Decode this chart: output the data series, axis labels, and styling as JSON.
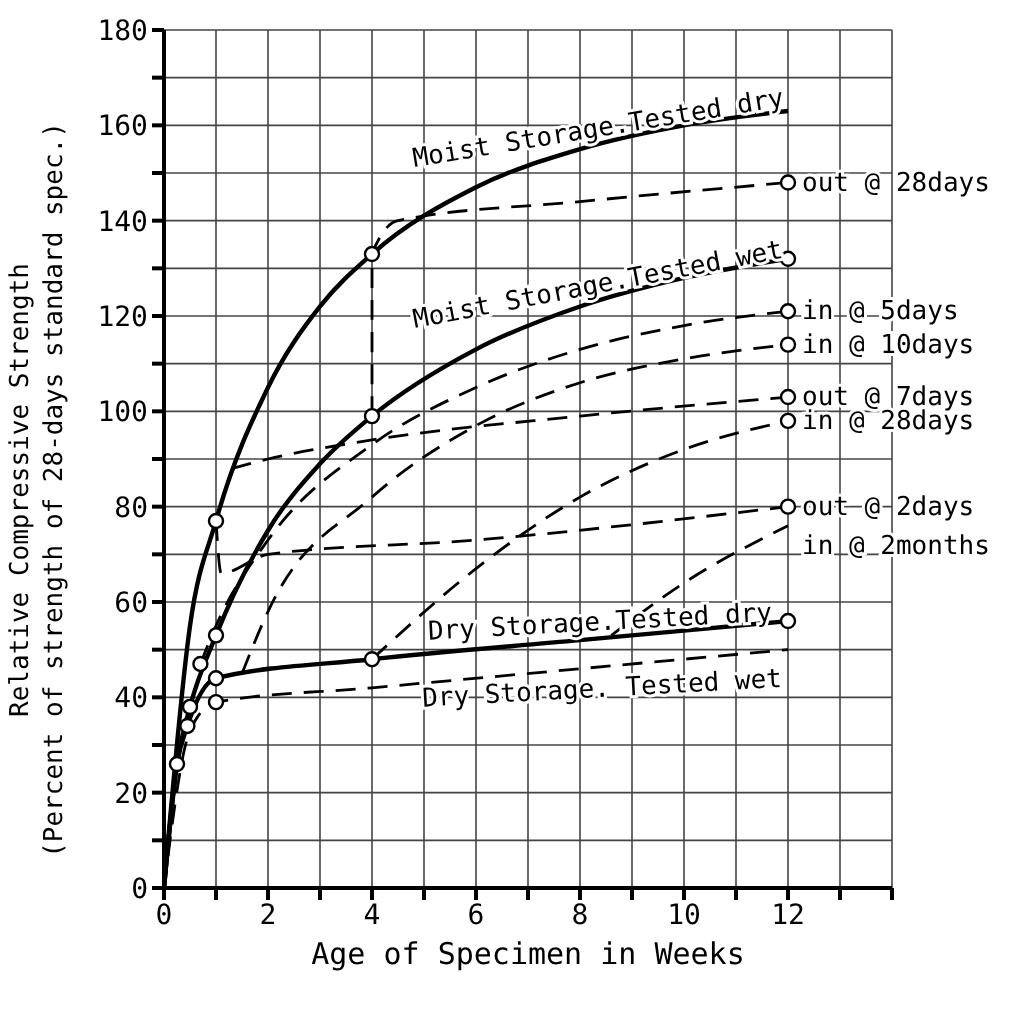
{
  "chart_data": {
    "type": "line",
    "xlabel": "Age of Specimen in Weeks",
    "ylabel": "Relative Compressive Strength\n(Percent of strength of 28-days standard spec.)",
    "xlim": [
      0,
      14
    ],
    "xticks": [
      0,
      {
        "value": 1,
        "label": null
      },
      2,
      {
        "value": 3,
        "label": null
      },
      4,
      {
        "value": 5,
        "label": null
      },
      6,
      {
        "value": 7,
        "label": null
      },
      8,
      {
        "value": 9,
        "label": null
      },
      10,
      {
        "value": 11,
        "label": null
      },
      12,
      {
        "value": 13,
        "label": null
      },
      {
        "value": 14,
        "label": null
      }
    ],
    "ylim": [
      0,
      180
    ],
    "yticks": [
      0,
      {
        "value": 10,
        "label": null
      },
      20,
      {
        "value": 30,
        "label": null
      },
      40,
      {
        "value": 50,
        "label": null
      },
      60,
      {
        "value": 70,
        "label": null
      },
      80,
      {
        "value": 90,
        "label": null
      },
      100,
      {
        "value": 110,
        "label": null
      },
      120,
      {
        "value": 130,
        "label": null
      },
      140,
      {
        "value": 150,
        "label": null
      },
      160,
      {
        "value": 170,
        "label": null
      },
      180
    ],
    "grid": true,
    "series": [
      {
        "name": "Moist Storage.Tested dry",
        "color": "#000000",
        "line_style": "solid",
        "x": [
          0,
          0.5,
          1,
          2,
          3,
          4,
          6,
          8,
          10,
          12
        ],
        "values": [
          0,
          55,
          77,
          105,
          122,
          133,
          147,
          155,
          160,
          163
        ]
      },
      {
        "name": "Moist Storage.Tested wet",
        "color": "#000000",
        "line_style": "solid",
        "x": [
          0,
          0.25,
          0.5,
          1,
          2,
          3,
          4,
          6,
          8,
          10,
          12
        ],
        "values": [
          0,
          26,
          38,
          53,
          75,
          89,
          99,
          113,
          122,
          128,
          132
        ]
      },
      {
        "name": "Dry Storage.Tested dry",
        "color": "#000000",
        "line_style": "solid",
        "x": [
          0,
          0.25,
          0.45,
          1,
          4,
          8,
          12
        ],
        "values": [
          0,
          26,
          34,
          44,
          48,
          52,
          56
        ]
      },
      {
        "name": "Dry Storage. Tested wet",
        "color": "#000000",
        "line_style": "dashed",
        "x": [
          0,
          0.5,
          1,
          4,
          8,
          12
        ],
        "values": [
          0,
          33,
          39,
          42,
          46,
          50
        ]
      },
      {
        "name": "out @ 28days",
        "color": "#000000",
        "line_style": "dashed",
        "x": [
          4,
          4,
          4.5,
          8,
          12
        ],
        "values": [
          99,
          133,
          140,
          144,
          148
        ]
      },
      {
        "name": "in @ 5days",
        "color": "#000000",
        "line_style": "dashed",
        "x": [
          0.7,
          1,
          2,
          4,
          6,
          8,
          10,
          12
        ],
        "values": [
          47,
          55,
          73,
          93,
          105,
          113,
          118,
          121
        ]
      },
      {
        "name": "in @ 10days",
        "color": "#000000",
        "line_style": "dashed",
        "x": [
          1.5,
          2,
          4,
          6,
          8,
          10,
          12
        ],
        "values": [
          45,
          58,
          82,
          97,
          106,
          111,
          114
        ]
      },
      {
        "name": "out @ 7days",
        "color": "#000000",
        "line_style": "dashed",
        "x": [
          1.3,
          2,
          4,
          8,
          12
        ],
        "values": [
          88,
          90,
          94,
          99,
          103
        ]
      },
      {
        "name": "in @ 28days",
        "color": "#000000",
        "line_style": "dashed",
        "x": [
          4,
          6,
          8,
          10,
          12
        ],
        "values": [
          48,
          67,
          82,
          92,
          98
        ]
      },
      {
        "name": "out @ 2days",
        "color": "#000000",
        "line_style": "dashed",
        "x": [
          1,
          1.1,
          2,
          6,
          12
        ],
        "values": [
          77,
          66,
          70,
          73,
          80
        ]
      },
      {
        "name": "in @ 2months",
        "color": "#000000",
        "line_style": "dashed",
        "x": [
          8.6,
          10,
          12
        ],
        "values": [
          53,
          64,
          76
        ]
      },
      {
        "type": "scatter",
        "color": "#000000",
        "marker": "circle",
        "x": [
          0.25,
          0.45,
          0.5,
          0.7,
          1,
          1,
          1,
          1,
          4,
          4,
          4,
          12,
          12,
          12,
          12,
          12,
          12,
          12,
          12
        ],
        "values": [
          26,
          34,
          38,
          47,
          44,
          39,
          53,
          77,
          133,
          99,
          48,
          148,
          132,
          121,
          114,
          103,
          98,
          80,
          56
        ]
      }
    ]
  }
}
